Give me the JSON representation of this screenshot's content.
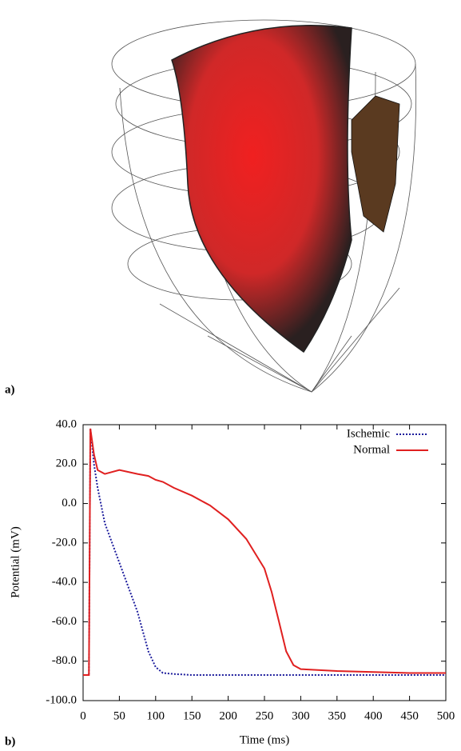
{
  "panel_a": {
    "label": "a)"
  },
  "panel_b": {
    "label": "b)"
  },
  "chart_data": {
    "type": "line",
    "xlabel": "Time (ms)",
    "ylabel": "Potential (mV)",
    "x": [
      0,
      8,
      10,
      15,
      20,
      30,
      50,
      75,
      90,
      100,
      110,
      125,
      150,
      175,
      200,
      225,
      250,
      260,
      270,
      280,
      290,
      300,
      350,
      400,
      450,
      500
    ],
    "series": [
      {
        "name": "Ischemic",
        "color": "#1c1c9c",
        "dash": "dotted",
        "values": [
          -87,
          -87,
          38,
          20,
          8,
          -10,
          -30,
          -55,
          -75,
          -83,
          -86,
          -86.5,
          -87,
          -87,
          -87,
          -87,
          -87,
          -87,
          -87,
          -87,
          -87,
          -87,
          -87,
          -87,
          -87,
          -87
        ]
      },
      {
        "name": "Normal",
        "color": "#e02020",
        "dash": "solid",
        "values": [
          -87,
          -87,
          38,
          25,
          17,
          15,
          17,
          15,
          14,
          12,
          11,
          8,
          4,
          -1,
          -8,
          -18,
          -33,
          -45,
          -60,
          -75,
          -82,
          -84,
          -85,
          -85.5,
          -86,
          -86
        ]
      }
    ],
    "xlim": [
      0,
      500
    ],
    "xticks": [
      0,
      50,
      100,
      150,
      200,
      250,
      300,
      350,
      400,
      450,
      500
    ],
    "ylim": [
      -100,
      40
    ],
    "yticks": [
      {
        "value": -100,
        "label": "-100.0"
      },
      {
        "value": -80,
        "label": "-80.0"
      },
      {
        "value": -60,
        "label": "-60.0"
      },
      {
        "value": -40,
        "label": "-40.0"
      },
      {
        "value": -20,
        "label": "-20.0"
      },
      {
        "value": 0,
        "label": "0.0"
      },
      {
        "value": 20,
        "label": "20.0"
      },
      {
        "value": 40,
        "label": "40.0"
      }
    ],
    "legend": "upper right"
  }
}
